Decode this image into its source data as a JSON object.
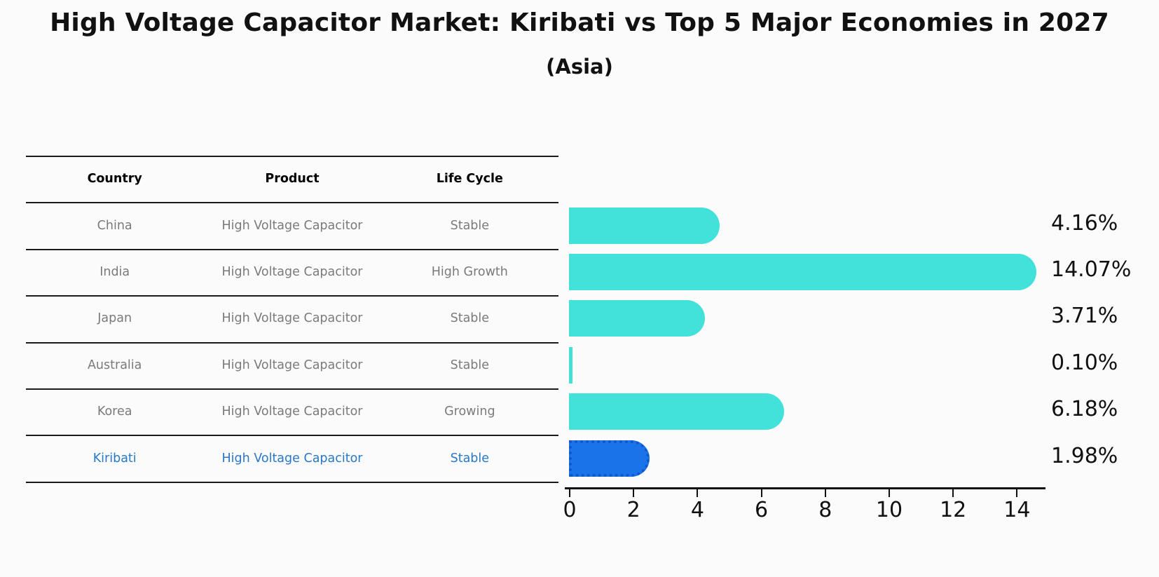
{
  "title": "High Voltage Capacitor Market: Kiribati vs Top 5 Major Economies in 2027",
  "subtitle": "(Asia)",
  "table": {
    "headers": [
      "Country",
      "Product",
      "Life Cycle"
    ],
    "rows": [
      {
        "country": "China",
        "product": "High Voltage Capacitor",
        "life_cycle": "Stable",
        "highlight": false
      },
      {
        "country": "India",
        "product": "High Voltage Capacitor",
        "life_cycle": "High Growth",
        "highlight": false
      },
      {
        "country": "Japan",
        "product": "High Voltage Capacitor",
        "life_cycle": "Stable",
        "highlight": false
      },
      {
        "country": "Australia",
        "product": "High Voltage Capacitor",
        "life_cycle": "Stable",
        "highlight": false
      },
      {
        "country": "Korea",
        "product": "High Voltage Capacitor",
        "life_cycle": "Growing",
        "highlight": false
      },
      {
        "country": "Kiribati",
        "product": "High Voltage Capacitor",
        "life_cycle": "Stable",
        "highlight": true
      }
    ]
  },
  "chart_data": {
    "type": "bar",
    "orientation": "horizontal",
    "title": "High Voltage Capacitor Market: Kiribati vs Top 5 Major Economies in 2027",
    "subtitle": "(Asia)",
    "categories": [
      "China",
      "India",
      "Japan",
      "Australia",
      "Korea",
      "Kiribati"
    ],
    "values": [
      4.16,
      14.07,
      3.71,
      0.1,
      6.18,
      1.98
    ],
    "value_labels": [
      "4.16%",
      "14.07%",
      "3.71%",
      "0.10%",
      "6.18%",
      "1.98%"
    ],
    "xlim": [
      0,
      14.9
    ],
    "xticks": [
      0,
      2,
      4,
      6,
      8,
      10,
      12,
      14
    ],
    "grid": false,
    "legend": "none",
    "highlight_index": 5,
    "colors": {
      "bar": "#42E2DA",
      "highlight_bar": "#1A73E8",
      "highlight_bar_edge": "#1157CB",
      "highlight_text": "#2878C8",
      "table_text": "#7A7A7A",
      "table_header_text": "#000000",
      "axis": "#111111"
    }
  }
}
